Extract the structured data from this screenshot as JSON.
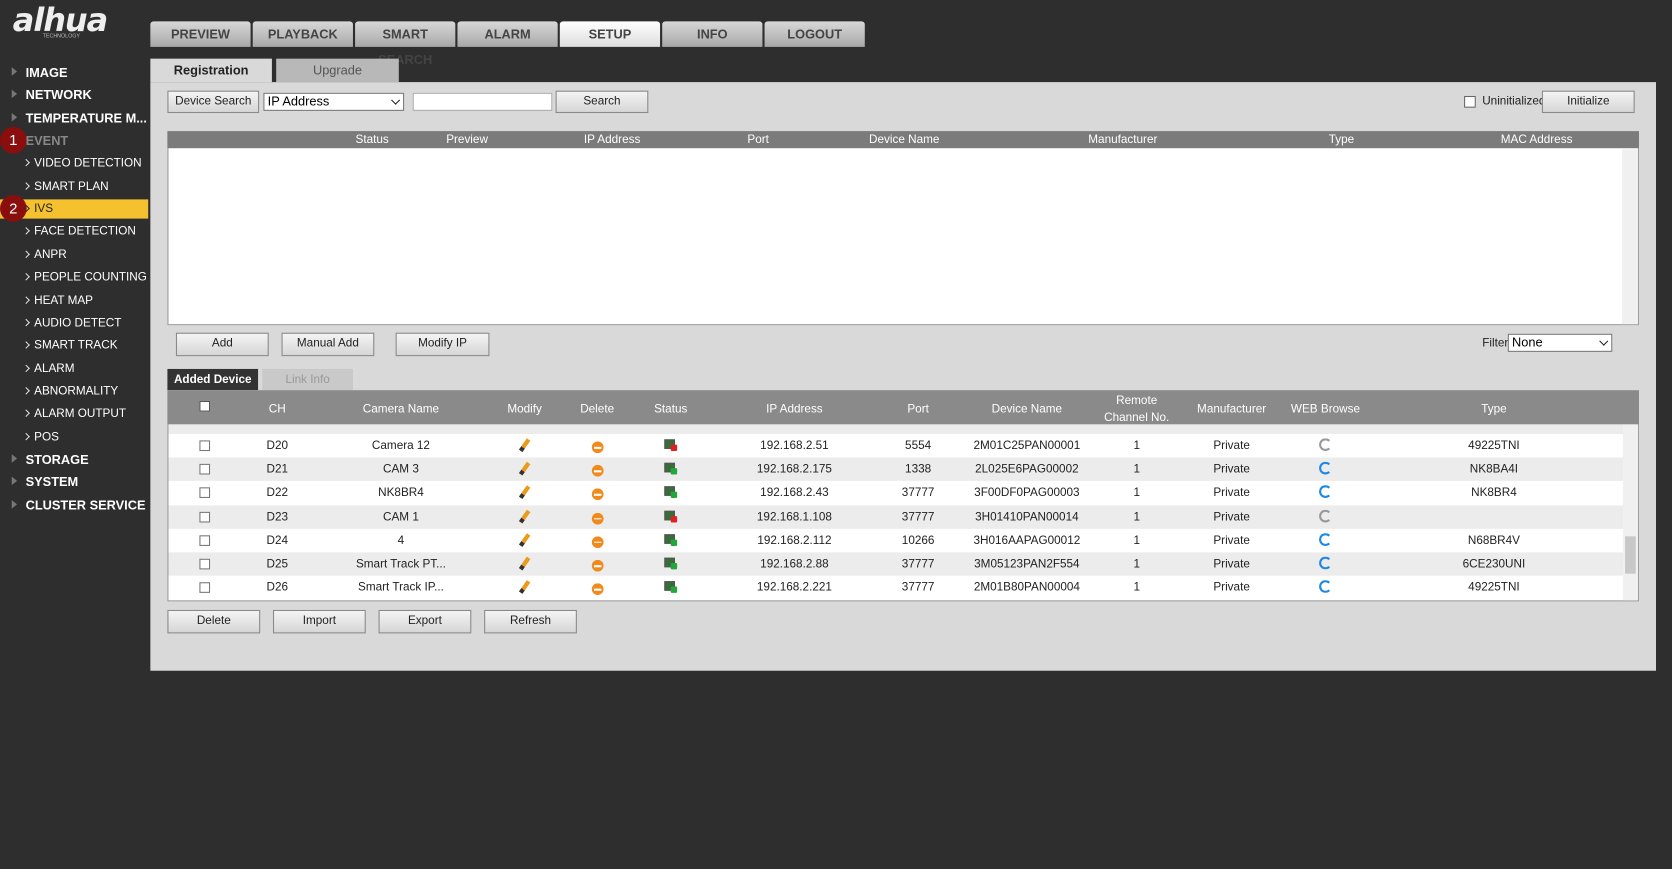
{
  "logo": {
    "brand": "alhua",
    "tagline": "TECHNOLOGY"
  },
  "nav": {
    "tabs": [
      "PREVIEW",
      "PLAYBACK",
      "SMART SEARCH",
      "ALARM",
      "SETUP",
      "INFO",
      "LOGOUT"
    ],
    "active": 4
  },
  "sidebar": [
    {
      "label": "IMAGE",
      "level": 0
    },
    {
      "label": "NETWORK",
      "level": 0
    },
    {
      "label": "TEMPERATURE M...",
      "level": 0
    },
    {
      "label": "EVENT",
      "level": 0,
      "badge": "1",
      "dim": true
    },
    {
      "label": "VIDEO DETECTION",
      "level": 1
    },
    {
      "label": "SMART PLAN",
      "level": 1
    },
    {
      "label": "IVS",
      "level": 1,
      "badge": "2",
      "active": true
    },
    {
      "label": "FACE DETECTION",
      "level": 1
    },
    {
      "label": "ANPR",
      "level": 1
    },
    {
      "label": "PEOPLE COUNTING",
      "level": 1
    },
    {
      "label": "HEAT MAP",
      "level": 1
    },
    {
      "label": "AUDIO DETECT",
      "level": 1
    },
    {
      "label": "SMART TRACK",
      "level": 1
    },
    {
      "label": "ALARM",
      "level": 1
    },
    {
      "label": "ABNORMALITY",
      "level": 1
    },
    {
      "label": "ALARM OUTPUT",
      "level": 1
    },
    {
      "label": "POS",
      "level": 1
    },
    {
      "label": "STORAGE",
      "level": 0
    },
    {
      "label": "SYSTEM",
      "level": 0
    },
    {
      "label": "CLUSTER SERVICE",
      "level": 0
    }
  ],
  "subtabs": {
    "items": [
      "Registration",
      "Upgrade"
    ],
    "active": 0
  },
  "toolbar": {
    "device_search": "Device Search",
    "search_by": "IP Address",
    "search": "Search",
    "uninitialized": "Uninitialized",
    "initialize": "Initialize"
  },
  "search_table": {
    "headers": [
      "Status",
      "Preview",
      "IP Address",
      "Port",
      "Device Name",
      "Manufacturer",
      "Type",
      "MAC Address"
    ]
  },
  "actions": {
    "buttons": [
      "Add",
      "Manual Add",
      "Modify IP"
    ],
    "filter_label": "Filter",
    "filter_value": "None"
  },
  "device_tabs": {
    "items": [
      "Added Device",
      "Link Info"
    ],
    "active": 0
  },
  "added_table": {
    "headers": [
      "CH",
      "Camera Name",
      "Modify",
      "Delete",
      "Status",
      "IP Address",
      "Port",
      "Device Name",
      "Remote Channel No.",
      "Manufacturer",
      "WEB Browse",
      "Type"
    ],
    "rows": [
      {
        "ch": "D20",
        "name": "Camera 12",
        "online": false,
        "ip": "192.168.2.51",
        "port": 5554,
        "device_name": "2M01C25PAN00001",
        "remote_channel": 1,
        "manufacturer": "Private",
        "type": "49225TNI"
      },
      {
        "ch": "D21",
        "name": "CAM 3",
        "online": true,
        "ip": "192.168.2.175",
        "port": 1338,
        "device_name": "2L025E6PAG00002",
        "remote_channel": 1,
        "manufacturer": "Private",
        "type": "NK8BA4I"
      },
      {
        "ch": "D22",
        "name": "NK8BR4",
        "online": true,
        "ip": "192.168.2.43",
        "port": 37777,
        "device_name": "3F00DF0PAG00003",
        "remote_channel": 1,
        "manufacturer": "Private",
        "type": "NK8BR4"
      },
      {
        "ch": "D23",
        "name": "CAM 1",
        "online": false,
        "ip": "192.168.1.108",
        "port": 37777,
        "device_name": "3H01410PAN00014",
        "remote_channel": 1,
        "manufacturer": "Private",
        "type": null
      },
      {
        "ch": "D24",
        "name": "4",
        "online": true,
        "ip": "192.168.2.112",
        "port": 10266,
        "device_name": "3H016AAPAG00012",
        "remote_channel": 1,
        "manufacturer": "Private",
        "type": "N68BR4V"
      },
      {
        "ch": "D25",
        "name": "Smart Track PT...",
        "online": true,
        "ip": "192.168.2.88",
        "port": 37777,
        "device_name": "3M05123PAN2F554",
        "remote_channel": 1,
        "manufacturer": "Private",
        "type": "6CE230UNI"
      },
      {
        "ch": "D26",
        "name": "Smart Track IP...",
        "online": true,
        "ip": "192.168.2.221",
        "port": 37777,
        "device_name": "2M01B80PAN00004",
        "remote_channel": 1,
        "manufacturer": "Private",
        "type": "49225TNI"
      }
    ]
  },
  "footer_buttons": [
    "Delete",
    "Import",
    "Export",
    "Refresh"
  ]
}
